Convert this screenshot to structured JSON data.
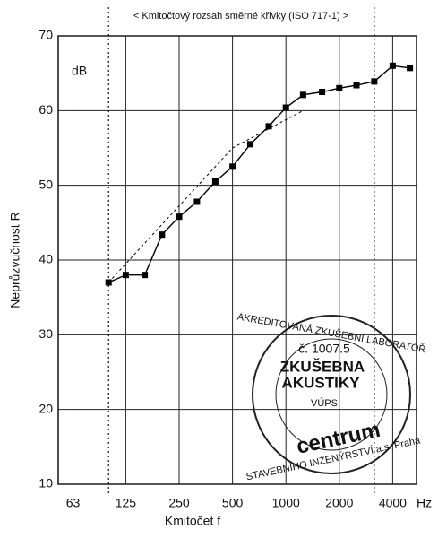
{
  "chart_data": {
    "type": "line",
    "header": "< Kmitočtový rozsah směrné křivky (ISO 717-1) >",
    "xlabel": "Kmitočet  f",
    "ylabel": "Neprůzvučnost  R",
    "y_unit": "dB",
    "x_unit": "Hz",
    "log_x": true,
    "grid": true,
    "xlim": [
      52,
      5450
    ],
    "ylim": [
      10,
      70
    ],
    "xticks": [
      63,
      125,
      250,
      500,
      1000,
      2000,
      4000
    ],
    "yticks": [
      10,
      20,
      30,
      40,
      50,
      60,
      70
    ],
    "range": [
      100,
      3150
    ],
    "series": [
      {
        "color": "#000000",
        "style": "solid",
        "marker": "square",
        "x": [
          100,
          125,
          160,
          200,
          250,
          315,
          400,
          500,
          630,
          800,
          1000,
          1250,
          1600,
          2000,
          2500,
          3150,
          4000,
          5000
        ],
        "values": [
          37,
          38,
          38,
          43.4,
          45.8,
          47.8,
          50.5,
          52.5,
          55.5,
          57.9,
          60.4,
          62.1,
          62.5,
          63,
          63.4,
          63.9,
          66,
          65.7
        ]
      },
      {
        "color": "#000000",
        "style": "dashed",
        "marker": "none",
        "x": [
          100,
          500,
          1250
        ],
        "values": [
          37,
          55,
          60
        ]
      }
    ],
    "stamp": [
      "AKREDITOVANÁ ZKUŠEBNÍ LABORATOŘ",
      "č. 1007.5",
      "ZKUŠEBNA",
      "AKUSTIKY",
      "VÚPS",
      "STAVEBNÍHO INŽENÝRSTVÍ a.s. Praha",
      "centrum"
    ]
  }
}
